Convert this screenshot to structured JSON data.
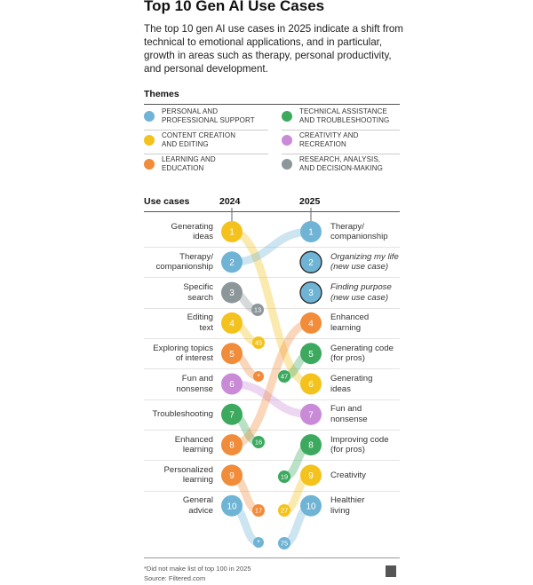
{
  "title": "Top 10 Gen AI Use Cases",
  "intro": "The top 10 gen AI use cases in 2025 indicate a shift from technical to emotional applications, and in particular, growth in areas such as therapy, personal productivity, and personal development.",
  "themes_heading": "Themes",
  "colors": {
    "personal": "#6fb4d4",
    "technical": "#3ca95f",
    "content": "#f4c21c",
    "creativity": "#c98ad8",
    "learning": "#f08c3a",
    "research": "#8d9699"
  },
  "themes": [
    {
      "key": "personal",
      "label": "PERSONAL AND\nPROFESSIONAL SUPPORT",
      "icon": "blue-dot-icon"
    },
    {
      "key": "technical",
      "label": "TECHNICAL ASSISTANCE\nAND TROUBLESHOOTING",
      "icon": "green-dot-icon"
    },
    {
      "key": "content",
      "label": "CONTENT CREATION\nAND EDITING",
      "icon": "yellow-dot-icon"
    },
    {
      "key": "creativity",
      "label": "CREATIVITY AND\nRECREATION",
      "icon": "purple-dot-icon"
    },
    {
      "key": "learning",
      "label": "LEARNING AND\nEDUCATION",
      "icon": "orange-dot-icon"
    },
    {
      "key": "research",
      "label": "RESEARCH, ANALYSIS,\nAND DECISION-MAKING",
      "icon": "gray-dot-icon"
    }
  ],
  "use_cases_heading": "Use cases",
  "year_left": "2024",
  "year_right": "2025",
  "left": [
    {
      "rank": "1",
      "label": "Generating\nideas",
      "theme": "content",
      "rank2025": "6"
    },
    {
      "rank": "2",
      "label": "Therapy/\ncompanionship",
      "theme": "personal",
      "rank2025": "1"
    },
    {
      "rank": "3",
      "label": "Specific\nsearch",
      "theme": "research",
      "rank2025": "13"
    },
    {
      "rank": "4",
      "label": "Editing\ntext",
      "theme": "content",
      "rank2025": "45"
    },
    {
      "rank": "5",
      "label": "Exploring topics\nof interest",
      "theme": "learning",
      "rank2025": "*"
    },
    {
      "rank": "6",
      "label": "Fun and\nnonsense",
      "theme": "creativity",
      "rank2025": "7"
    },
    {
      "rank": "7",
      "label": "Troubleshooting",
      "theme": "technical",
      "rank2025": "16"
    },
    {
      "rank": "8",
      "label": "Enhanced\nlearning",
      "theme": "learning",
      "rank2025": "4"
    },
    {
      "rank": "9",
      "label": "Personalized\nlearning",
      "theme": "learning",
      "rank2025": "17"
    },
    {
      "rank": "10",
      "label": "General\nadvice",
      "theme": "personal",
      "rank2025": "*"
    }
  ],
  "right": [
    {
      "rank": "1",
      "label": "Therapy/\ncompanionship",
      "theme": "personal",
      "new": false,
      "rank2024": "2"
    },
    {
      "rank": "2",
      "label": "Organizing my life\n(new use case)",
      "theme": "personal",
      "new": true,
      "rank2024": ""
    },
    {
      "rank": "3",
      "label": "Finding purpose\n(new use case)",
      "theme": "personal",
      "new": true,
      "rank2024": ""
    },
    {
      "rank": "4",
      "label": "Enhanced\nlearning",
      "theme": "learning",
      "new": false,
      "rank2024": "8"
    },
    {
      "rank": "5",
      "label": "Generating code\n(for pros)",
      "theme": "technical",
      "new": false,
      "rank2024": "47"
    },
    {
      "rank": "6",
      "label": "Generating\nideas",
      "theme": "content",
      "new": false,
      "rank2024": "1"
    },
    {
      "rank": "7",
      "label": "Fun and\nnonsense",
      "theme": "creativity",
      "new": false,
      "rank2024": "6"
    },
    {
      "rank": "8",
      "label": "Improving code\n(for pros)",
      "theme": "technical",
      "new": false,
      "rank2024": "19"
    },
    {
      "rank": "9",
      "label": "Creativity",
      "theme": "content",
      "new": false,
      "rank2024": "27"
    },
    {
      "rank": "10",
      "label": "Healthier\nliving",
      "theme": "personal",
      "new": false,
      "rank2024": "75"
    }
  ],
  "footnote": "*Did not make list of top 100 in 2025",
  "source": "Source: Filtered.com"
}
